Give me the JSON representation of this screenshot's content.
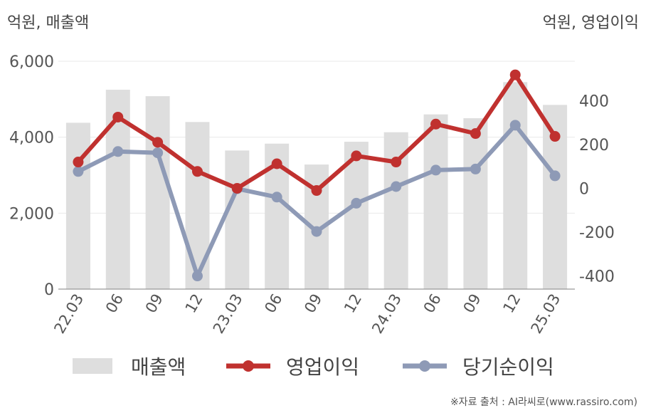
{
  "chart_data": {
    "type": "bar+line",
    "left_axis_unit": "억원, 매출액",
    "right_axis_unit": "억원, 영업이익",
    "categories": [
      "22.03",
      "06",
      "09",
      "12",
      "23.03",
      "06",
      "09",
      "12",
      "24.03",
      "06",
      "09",
      "12",
      "25.03"
    ],
    "left_ylim": [
      0,
      6000
    ],
    "left_ticks": [
      0,
      2000,
      4000,
      6000
    ],
    "left_tick_labels": [
      "0",
      "2,000",
      "4,000",
      "6,000"
    ],
    "right_ylim": [
      -460,
      580
    ],
    "right_ticks": [
      -400,
      -200,
      0,
      200,
      400
    ],
    "right_tick_labels": [
      "-400",
      "-200",
      "0",
      "200",
      "400"
    ],
    "series": [
      {
        "name": "매출액",
        "type": "bar",
        "axis": "left",
        "color": "#dedede",
        "values": [
          4380,
          5250,
          5080,
          4400,
          3650,
          3830,
          3280,
          3880,
          4130,
          4600,
          4500,
          5450,
          4850
        ]
      },
      {
        "name": "영업이익",
        "type": "line",
        "axis": "right",
        "color": "#c0312f",
        "values": [
          120,
          325,
          210,
          77,
          0,
          112,
          -10,
          148,
          120,
          293,
          250,
          518,
          237
        ]
      },
      {
        "name": "당기순이익",
        "type": "line",
        "axis": "right",
        "color": "#8e9ab6",
        "values": [
          77,
          168,
          162,
          -400,
          -2,
          -40,
          -197,
          -68,
          8,
          83,
          88,
          288,
          57
        ]
      }
    ],
    "grid": true,
    "legend_position": "bottom"
  },
  "legend": {
    "sales": "매출액",
    "operating_profit": "영업이익",
    "net_income": "당기순이익"
  },
  "source": "※자료 출처 : AI라씨로(www.rassiro.com)"
}
